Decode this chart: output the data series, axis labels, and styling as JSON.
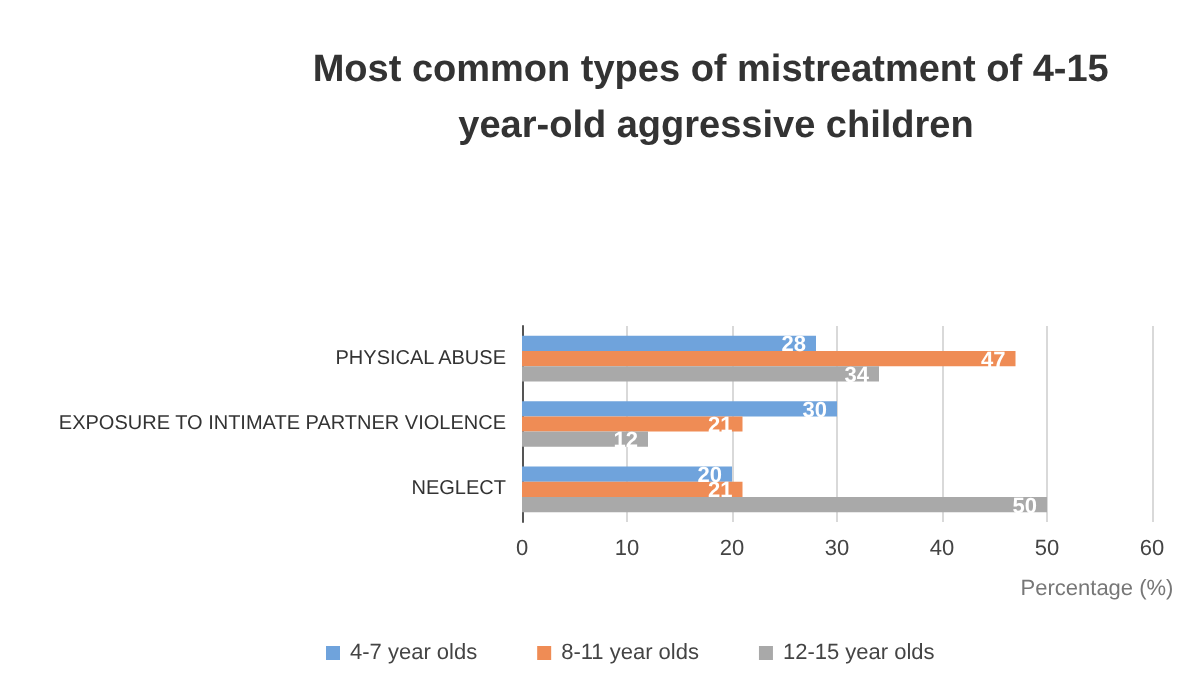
{
  "chart_data": {
    "type": "bar",
    "orientation": "horizontal",
    "title": "Most common types of mistreatment of 4-15 year-old aggressive children",
    "categories": [
      "PHYSICAL ABUSE",
      "EXPOSURE TO INTIMATE PARTNER VIOLENCE",
      "NEGLECT"
    ],
    "series": [
      {
        "name": "4-7 year olds",
        "color": "#6fa3dc",
        "values": [
          28,
          30,
          20
        ]
      },
      {
        "name": "8-11 year olds",
        "color": "#ef8c55",
        "values": [
          47,
          21,
          21
        ]
      },
      {
        "name": "12-15 year olds",
        "color": "#a9a9a9",
        "values": [
          34,
          12,
          50
        ]
      }
    ],
    "xlabel": "Percentage (%)",
    "xlim": [
      0,
      60
    ],
    "xticks": [
      0,
      10,
      20,
      30,
      40,
      50,
      60
    ],
    "grid": "x",
    "legend": "bottom",
    "data_labels": true
  }
}
